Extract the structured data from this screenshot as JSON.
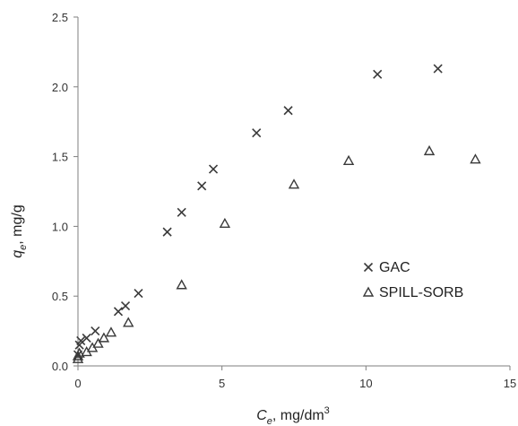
{
  "chart_data": {
    "type": "scatter",
    "title": "",
    "xlabel": {
      "var": "C",
      "sub": "e",
      "rest": ", mg/dm",
      "sup": "3"
    },
    "ylabel": {
      "var": "q",
      "sub": "e",
      "rest": ", mg/g"
    },
    "xlim": [
      0,
      15
    ],
    "ylim": [
      0,
      2.5
    ],
    "xticks": [
      0,
      5,
      10,
      15
    ],
    "yticks": [
      0.0,
      0.5,
      1.0,
      1.5,
      2.0,
      2.5
    ],
    "xtick_labels": [
      "0",
      "5",
      "10",
      "15"
    ],
    "ytick_labels": [
      "0.0",
      "0.5",
      "1.0",
      "1.5",
      "2.0",
      "2.5"
    ],
    "grid": false,
    "legend_position": "lower-right",
    "series": [
      {
        "name": "GAC",
        "marker": "x",
        "color": "#3a3a3a",
        "points": [
          [
            0.0,
            0.08
          ],
          [
            0.05,
            0.15
          ],
          [
            0.1,
            0.18
          ],
          [
            0.3,
            0.2
          ],
          [
            0.6,
            0.25
          ],
          [
            1.4,
            0.39
          ],
          [
            1.65,
            0.43
          ],
          [
            2.1,
            0.52
          ],
          [
            3.1,
            0.96
          ],
          [
            3.6,
            1.1
          ],
          [
            4.3,
            1.29
          ],
          [
            4.7,
            1.41
          ],
          [
            6.2,
            1.67
          ],
          [
            7.3,
            1.83
          ],
          [
            10.4,
            2.09
          ],
          [
            12.5,
            2.13
          ]
        ]
      },
      {
        "name": "SPILL-SORB",
        "marker": "triangle",
        "color": "#3a3a3a",
        "points": [
          [
            0.0,
            0.05
          ],
          [
            0.0,
            0.07
          ],
          [
            0.05,
            0.09
          ],
          [
            0.3,
            0.1
          ],
          [
            0.5,
            0.13
          ],
          [
            0.7,
            0.16
          ],
          [
            0.9,
            0.2
          ],
          [
            1.15,
            0.24
          ],
          [
            1.75,
            0.31
          ],
          [
            3.6,
            0.58
          ],
          [
            5.1,
            1.02
          ],
          [
            7.5,
            1.3
          ],
          [
            9.4,
            1.47
          ],
          [
            12.2,
            1.54
          ],
          [
            13.8,
            1.48
          ]
        ]
      }
    ]
  }
}
